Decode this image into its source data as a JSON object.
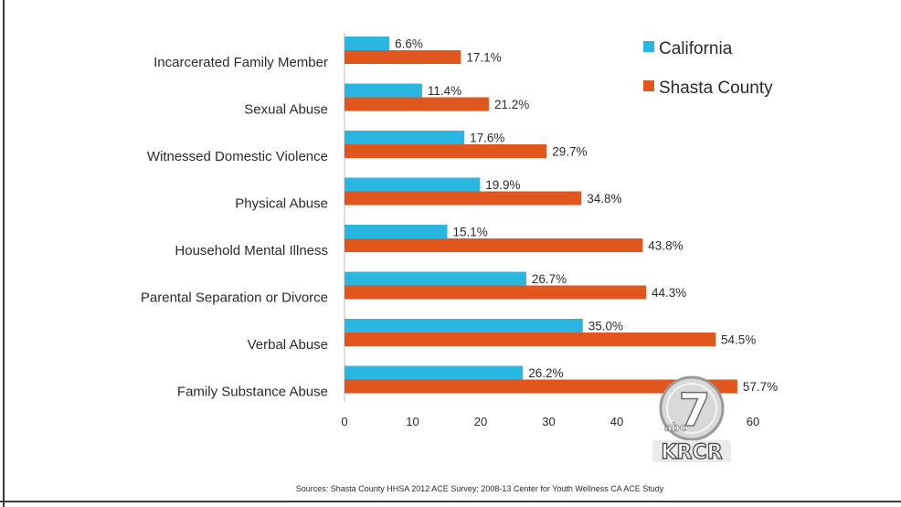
{
  "chart_data": {
    "type": "bar",
    "orientation": "horizontal",
    "categories": [
      "Incarcerated Family Member",
      "Sexual Abuse",
      "Witnessed Domestic Violence",
      "Physical Abuse",
      "Household Mental Illness",
      "Parental Separation or Divorce",
      "Verbal Abuse",
      "Family Substance Abuse"
    ],
    "series": [
      {
        "name": "California",
        "color": "#29b6e0",
        "values": [
          6.6,
          11.4,
          17.6,
          19.9,
          15.1,
          26.7,
          35.0,
          26.2
        ],
        "labels": [
          "6.6%",
          "11.4%",
          "17.6%",
          "19.9%",
          "15.1%",
          "26.7%",
          "35.0%",
          "26.2%"
        ]
      },
      {
        "name": "Shasta County",
        "color": "#e0561c",
        "values": [
          17.1,
          21.2,
          29.7,
          34.8,
          43.8,
          44.3,
          54.5,
          57.7
        ],
        "labels": [
          "17.1%",
          "21.2%",
          "29.7%",
          "34.8%",
          "43.8%",
          "44.3%",
          "54.5%",
          "57.7%"
        ]
      }
    ],
    "xlim": [
      0,
      60
    ],
    "xticks": [
      "0",
      "10",
      "20",
      "30",
      "40",
      "50",
      "60"
    ],
    "legend_position": "top-right",
    "grid": false
  },
  "source_text": "Sources: Shasta County HHSA 2012 ACE Survey; 2008-13 Center for Youth Wellness CA ACE Study",
  "logo": {
    "channel_number": "7",
    "network": "abc",
    "call_sign": "KRCR"
  }
}
